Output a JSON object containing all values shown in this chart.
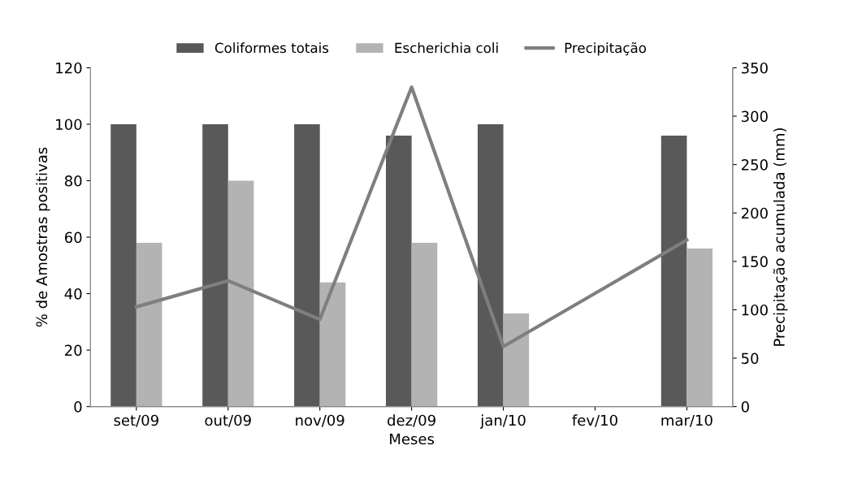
{
  "chart_data": {
    "type": "bar",
    "xlabel": "Meses",
    "ylabel": "% de Amostras positivas",
    "y2label": "Precipitação acumulada (mm)",
    "categories": [
      "set/09",
      "out/09",
      "nov/09",
      "dez/09",
      "jan/10",
      "fev/10",
      "mar/10"
    ],
    "series": [
      {
        "name": "Coliformes totais",
        "color": "#595959",
        "values": [
          100,
          100,
          100,
          96,
          100,
          null,
          96
        ]
      },
      {
        "name": "Escherichia coli",
        "color": "#b3b3b3",
        "values": [
          58,
          80,
          44,
          58,
          33,
          null,
          56
        ]
      },
      {
        "name": "Precipitação",
        "type": "line",
        "axis": "y2",
        "color": "#7f7f7f",
        "values": [
          103,
          130,
          90,
          330,
          62,
          null,
          172
        ]
      }
    ],
    "ylim": [
      0,
      120
    ],
    "yticks": [
      0,
      20,
      40,
      60,
      80,
      100,
      120
    ],
    "y2lim": [
      0,
      350
    ],
    "y2ticks": [
      0,
      50,
      100,
      150,
      200,
      250,
      300,
      350
    ],
    "grid": false,
    "legend": "top",
    "marker": "none",
    "line_style": "solid"
  }
}
